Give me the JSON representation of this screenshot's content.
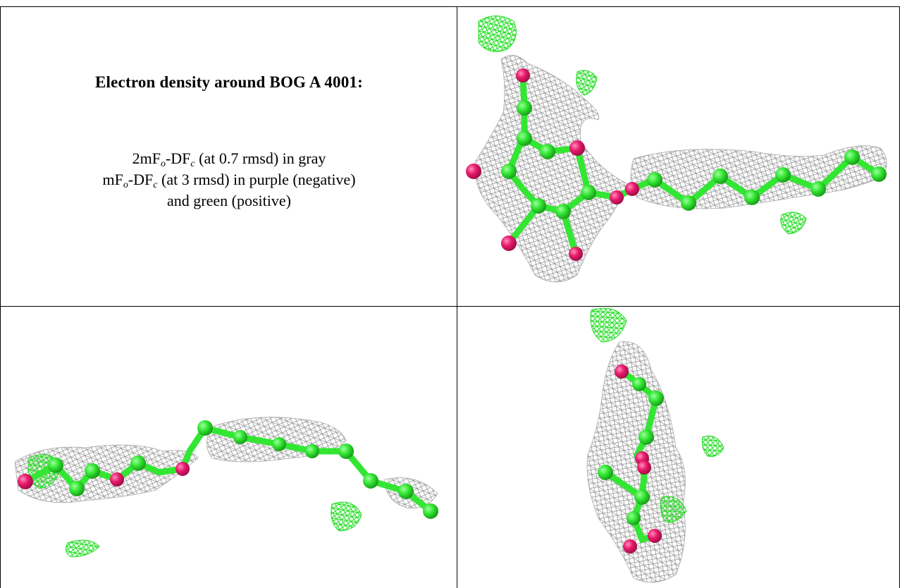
{
  "caption": {
    "title": "Electron density around BOG A 4001:",
    "line1_prefix": "2mF",
    "line1_sub1": "o",
    "line1_mid": "-DF",
    "line1_sub2": "c",
    "line1_suffix": " (at 0.7 rmsd) in gray",
    "line2_prefix": "mF",
    "line2_sub1": "o",
    "line2_mid": "-DF",
    "line2_sub2": "c",
    "line2_suffix": " (at 3 rmsd) in purple (negative)",
    "line3": "and green (positive)"
  },
  "colors": {
    "mesh_gray": "#9a9a9a",
    "mesh_green": "#22dd22",
    "atom_carbon": "#33e633",
    "atom_oxygen": "#e8196b",
    "border": "#000000"
  },
  "views": [
    {
      "name": "view-top-right"
    },
    {
      "name": "view-bottom-left"
    },
    {
      "name": "view-bottom-right"
    }
  ]
}
